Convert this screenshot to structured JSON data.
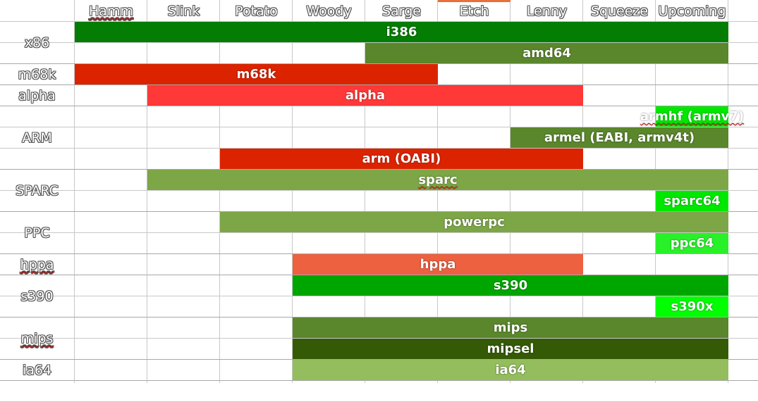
{
  "columns": [
    "Hamm",
    "Slink",
    "Potato",
    "Woody",
    "Sarge",
    "Etch",
    "Lenny",
    "Squeeze",
    "Upcoming"
  ],
  "spellchecked_columns": [
    0
  ],
  "selected_column": 5,
  "groups": [
    {
      "label": "x86",
      "spell": false,
      "rows": 2
    },
    {
      "label": "m68k",
      "spell": false,
      "rows": 1
    },
    {
      "label": "alpha",
      "spell": false,
      "rows": 1
    },
    {
      "label": "ARM",
      "spell": false,
      "rows": 3
    },
    {
      "label": "SPARC",
      "spell": false,
      "rows": 2
    },
    {
      "label": "PPC",
      "spell": false,
      "rows": 2
    },
    {
      "label": "hppa",
      "spell": true,
      "rows": 1
    },
    {
      "label": "s390",
      "spell": false,
      "rows": 2
    },
    {
      "label": "mips",
      "spell": true,
      "rows": 2
    },
    {
      "label": "ia64",
      "spell": false,
      "rows": 1
    }
  ],
  "bars": [
    {
      "name": "i386",
      "row": 0,
      "start": 0,
      "end": 8,
      "color": "#047d04",
      "spell": false
    },
    {
      "name": "amd64",
      "row": 1,
      "start": 4,
      "end": 8,
      "color": "#5a862c",
      "spell": false
    },
    {
      "name": "m68k",
      "row": 2,
      "start": 0,
      "end": 4,
      "color": "#dc2300",
      "spell": false
    },
    {
      "name": "alpha",
      "row": 3,
      "start": 1,
      "end": 6,
      "color": "#ff3838",
      "spell": false
    },
    {
      "name": "armhf (armv7)",
      "row": 4,
      "start": 8,
      "end": 8,
      "color": "#00e800",
      "spell": true
    },
    {
      "name": "armel (EABI, armv4t)",
      "row": 5,
      "start": 6,
      "end": 8,
      "color": "#5a862c",
      "spell": false
    },
    {
      "name": "arm (OABI)",
      "row": 6,
      "start": 2,
      "end": 6,
      "color": "#dc2300",
      "spell": false
    },
    {
      "name": "sparc",
      "row": 7,
      "start": 1,
      "end": 8,
      "color": "#7da647",
      "spell": true
    },
    {
      "name": "sparc64",
      "row": 8,
      "start": 8,
      "end": 8,
      "color": "#00e800",
      "spell": false
    },
    {
      "name": "powerpc",
      "row": 9,
      "start": 2,
      "end": 8,
      "color": "#7da647",
      "spell": false
    },
    {
      "name": "ppc64",
      "row": 10,
      "start": 8,
      "end": 8,
      "color": "#29f129",
      "spell": false
    },
    {
      "name": "hppa",
      "row": 11,
      "start": 3,
      "end": 6,
      "color": "#ed6140",
      "spell": false
    },
    {
      "name": "s390",
      "row": 12,
      "start": 3,
      "end": 8,
      "color": "#00a600",
      "spell": false
    },
    {
      "name": "s390x",
      "row": 13,
      "start": 8,
      "end": 8,
      "color": "#00ff00",
      "spell": false
    },
    {
      "name": "mips",
      "row": 14,
      "start": 3,
      "end": 8,
      "color": "#5a862c",
      "spell": false
    },
    {
      "name": "mipsel",
      "row": 15,
      "start": 3,
      "end": 8,
      "color": "#355a05",
      "spell": false
    },
    {
      "name": "ia64",
      "row": 16,
      "start": 3,
      "end": 8,
      "color": "#94bd5e",
      "spell": false
    }
  ]
}
